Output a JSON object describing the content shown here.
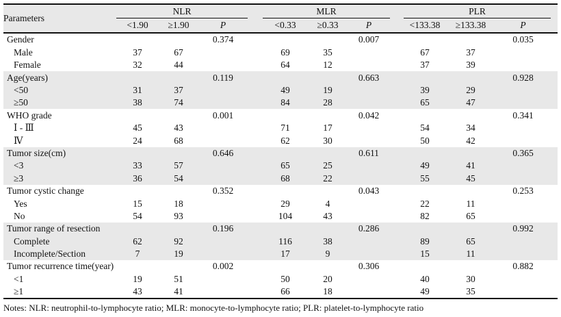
{
  "table": {
    "param_header": "Parameters",
    "groups": [
      {
        "label": "NLR",
        "cols": [
          "<1.90",
          "≥1.90",
          "P"
        ]
      },
      {
        "label": "MLR",
        "cols": [
          "<0.33",
          "≥0.33",
          "P"
        ]
      },
      {
        "label": "PLR",
        "cols": [
          "<133.38",
          "≥133.38",
          "P"
        ]
      }
    ],
    "rows": [
      {
        "type": "category",
        "shaded": false,
        "label": "Gender",
        "cells": [
          "",
          "",
          "0.374",
          "",
          "",
          "0.007",
          "",
          "",
          "0.035"
        ]
      },
      {
        "type": "sub",
        "shaded": false,
        "label": "Male",
        "cells": [
          "37",
          "67",
          "",
          "69",
          "35",
          "",
          "67",
          "37",
          ""
        ]
      },
      {
        "type": "sub",
        "shaded": false,
        "label": "Female",
        "cells": [
          "32",
          "44",
          "",
          "64",
          "12",
          "",
          "37",
          "39",
          ""
        ]
      },
      {
        "type": "category",
        "shaded": true,
        "label": "Age(years)",
        "cells": [
          "",
          "",
          "0.119",
          "",
          "",
          "0.663",
          "",
          "",
          "0.928"
        ]
      },
      {
        "type": "sub",
        "shaded": true,
        "label": "<50",
        "cells": [
          "31",
          "37",
          "",
          "49",
          "19",
          "",
          "39",
          "29",
          ""
        ]
      },
      {
        "type": "sub",
        "shaded": true,
        "label": "≥50",
        "cells": [
          "38",
          "74",
          "",
          "84",
          "28",
          "",
          "65",
          "47",
          ""
        ]
      },
      {
        "type": "category",
        "shaded": false,
        "label": "WHO grade",
        "cells": [
          "",
          "",
          "0.001",
          "",
          "",
          "0.042",
          "",
          "",
          "0.341"
        ]
      },
      {
        "type": "sub",
        "shaded": false,
        "label": "Ⅰ - Ⅲ",
        "cells": [
          "45",
          "43",
          "",
          "71",
          "17",
          "",
          "54",
          "34",
          ""
        ]
      },
      {
        "type": "sub",
        "shaded": false,
        "label": "Ⅳ",
        "cells": [
          "24",
          "68",
          "",
          "62",
          "30",
          "",
          "50",
          "42",
          ""
        ]
      },
      {
        "type": "category",
        "shaded": true,
        "label": "Tumor size(cm)",
        "cells": [
          "",
          "",
          "0.646",
          "",
          "",
          "0.611",
          "",
          "",
          "0.365"
        ]
      },
      {
        "type": "sub",
        "shaded": true,
        "label": "<3",
        "cells": [
          "33",
          "57",
          "",
          "65",
          "25",
          "",
          "49",
          "41",
          ""
        ]
      },
      {
        "type": "sub",
        "shaded": true,
        "label": "≥3",
        "cells": [
          "36",
          "54",
          "",
          "68",
          "22",
          "",
          "55",
          "45",
          ""
        ]
      },
      {
        "type": "category",
        "shaded": false,
        "label": "Tumor cystic change",
        "cells": [
          "",
          "",
          "0.352",
          "",
          "",
          "0.043",
          "",
          "",
          "0.253"
        ]
      },
      {
        "type": "sub",
        "shaded": false,
        "label": "Yes",
        "cells": [
          "15",
          "18",
          "",
          "29",
          "4",
          "",
          "22",
          "11",
          ""
        ]
      },
      {
        "type": "sub",
        "shaded": false,
        "label": "No",
        "cells": [
          "54",
          "93",
          "",
          "104",
          "43",
          "",
          "82",
          "65",
          ""
        ]
      },
      {
        "type": "category",
        "shaded": true,
        "label": "Tumor range of resection",
        "cells": [
          "",
          "",
          "0.196",
          "",
          "",
          "0.286",
          "",
          "",
          "0.992"
        ]
      },
      {
        "type": "sub",
        "shaded": true,
        "label": "Complete",
        "cells": [
          "62",
          "92",
          "",
          "116",
          "38",
          "",
          "89",
          "65",
          ""
        ]
      },
      {
        "type": "sub",
        "shaded": true,
        "label": "Incomplete/Section",
        "cells": [
          "7",
          "19",
          "",
          "17",
          "9",
          "",
          "15",
          "11",
          ""
        ]
      },
      {
        "type": "category",
        "shaded": false,
        "label": "Tumor recurrence time(year)",
        "cells": [
          "",
          "",
          "0.002",
          "",
          "",
          "0.306",
          "",
          "",
          "0.882"
        ]
      },
      {
        "type": "sub",
        "shaded": false,
        "label": "<1",
        "cells": [
          "19",
          "51",
          "",
          "50",
          "20",
          "",
          "40",
          "30",
          ""
        ]
      },
      {
        "type": "sub",
        "shaded": false,
        "label": "≥1",
        "cells": [
          "43",
          "41",
          "",
          "66",
          "18",
          "",
          "49",
          "35",
          ""
        ]
      }
    ],
    "notes": "Notes: NLR: neutrophil-to-lymphocyte ratio; MLR: monocyte-to-lymphocyte ratio; PLR: platelet-to-lymphocyte ratio"
  },
  "colors": {
    "band": "#e8e8e8",
    "rule": "#111111",
    "text": "#111111"
  }
}
